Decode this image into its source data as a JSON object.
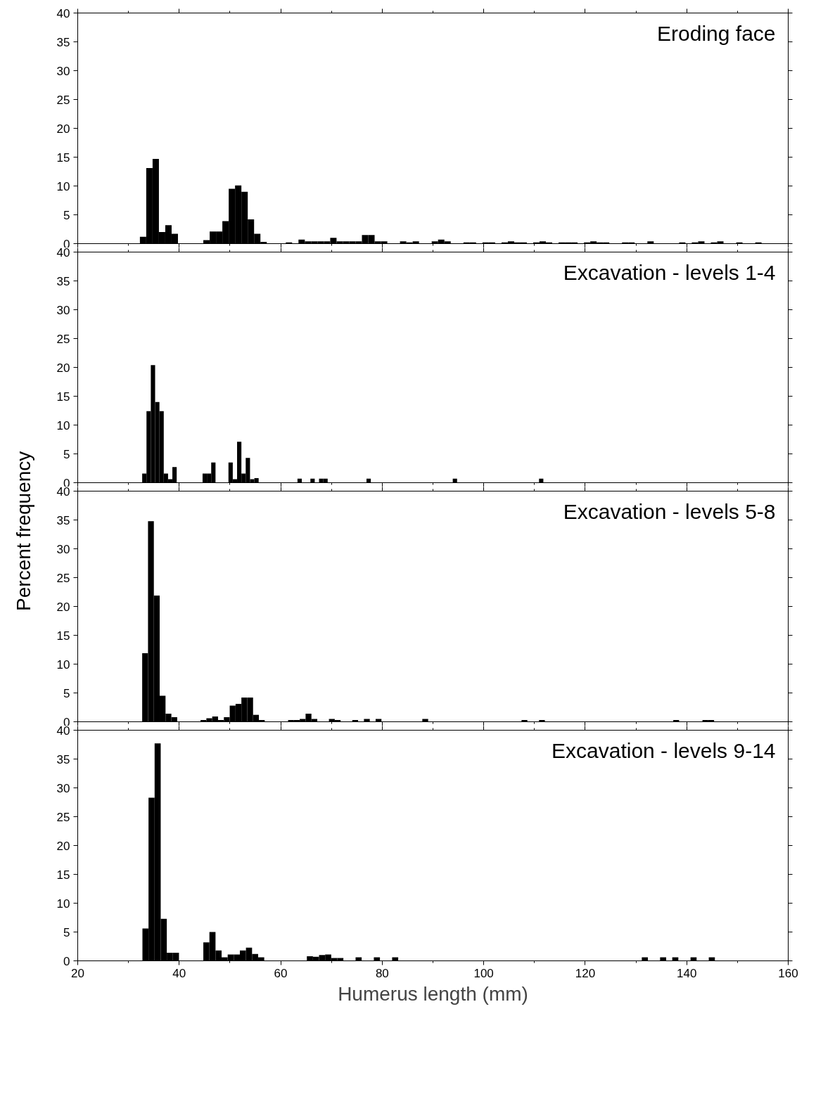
{
  "chart_data": [
    {
      "type": "histogram",
      "title": "Eroding face",
      "color": "#000000",
      "tick_labels": "y",
      "xlim": [
        20,
        160
      ],
      "xticks": [
        20,
        40,
        60,
        80,
        100,
        120,
        140,
        160
      ],
      "ylim": [
        0,
        40
      ],
      "yticks": [
        0,
        5,
        10,
        15,
        20,
        25,
        30,
        35,
        40
      ],
      "bins": [
        32.25,
        33.5,
        34.75,
        36,
        37.25,
        38.5,
        39.75,
        41,
        42.25,
        43.5,
        44.75,
        46,
        47.25,
        48.5,
        49.75,
        51,
        52.25,
        53.5,
        54.75,
        56,
        57.25,
        58.5,
        59.75,
        61,
        62.25,
        63.5,
        64.75,
        66,
        67.25,
        68.5,
        69.75,
        71,
        72.25,
        73.5,
        74.75,
        76,
        77.25,
        78.5,
        79.75,
        81,
        82.25,
        83.5,
        84.75,
        86,
        87.25,
        88.5,
        89.75,
        91,
        92.25,
        93.5,
        94.75,
        96,
        97.25,
        98.5,
        99.75,
        101,
        102.25,
        103.5,
        104.75,
        106,
        107.25,
        108.5,
        109.75,
        111,
        112.25,
        113.5,
        114.75,
        116,
        117.25,
        118.5,
        119.75,
        121,
        122.25,
        123.5,
        124.75,
        126,
        127.25,
        128.5,
        129.75,
        131,
        132.25,
        133.5,
        134.75,
        136,
        137.25,
        138.5,
        139.75,
        141,
        142.25,
        143.5,
        144.75,
        146,
        147.25,
        148.5,
        149.75,
        151,
        152.25,
        153.5,
        154.75,
        156
      ],
      "values": [
        1.2,
        13.1,
        14.7,
        2.0,
        3.2,
        1.7,
        0,
        0,
        0,
        0,
        0.6,
        2.1,
        2.1,
        3.9,
        9.5,
        10.1,
        9.0,
        4.2,
        1.7,
        0.3,
        0,
        0,
        0,
        0.2,
        0,
        0.7,
        0.4,
        0.4,
        0.4,
        0.4,
        1.0,
        0.4,
        0.4,
        0.4,
        0.4,
        1.5,
        1.5,
        0.4,
        0.4,
        0,
        0,
        0.4,
        0.2,
        0.4,
        0,
        0,
        0.4,
        0.7,
        0.4,
        0,
        0,
        0.2,
        0.2,
        0,
        0.2,
        0.2,
        0,
        0.2,
        0.4,
        0.2,
        0.2,
        0,
        0.2,
        0.4,
        0.2,
        0,
        0.2,
        0.2,
        0.2,
        0,
        0.2,
        0.4,
        0.2,
        0.2,
        0,
        0,
        0.2,
        0.2,
        0,
        0,
        0.4,
        0,
        0,
        0,
        0,
        0.2,
        0,
        0.2,
        0.4,
        0,
        0.2,
        0.4,
        0,
        0,
        0.2,
        0,
        0,
        0.2,
        0
      ]
    },
    {
      "type": "histogram",
      "title": "Excavation - levels 1-4",
      "ylabel": "Percent frequency",
      "color": "#000000",
      "tick_labels": "y",
      "xlim": [
        20,
        160
      ],
      "xticks": [
        20,
        40,
        60,
        80,
        100,
        120,
        140,
        160
      ],
      "ylim": [
        0,
        40
      ],
      "yticks": [
        0,
        5,
        10,
        15,
        20,
        25,
        30,
        35,
        40
      ],
      "bins": [
        32.7,
        33.55,
        34.4,
        35.25,
        36.1,
        36.95,
        37.8,
        38.65,
        39.5,
        40.35,
        41.2,
        42.05,
        42.9,
        43.75,
        44.6,
        45.45,
        46.3,
        47.15,
        48,
        48.85,
        49.7,
        50.55,
        51.4,
        52.25,
        53.1,
        53.95,
        54.8,
        55.65,
        56.5,
        57.35,
        58.2,
        59.05,
        59.9,
        60.75,
        61.6,
        62.45,
        63.3,
        64.15,
        65,
        65.85,
        66.7,
        67.55,
        68.4,
        69.25,
        70.1,
        70.95,
        71.8,
        72.65,
        73.5,
        74.35,
        75.2,
        76.05,
        76.9,
        77.75,
        78.6,
        79.45,
        80.3,
        81.15,
        82,
        82.85,
        83.7,
        84.55,
        85.4,
        86.25,
        87.1,
        87.95,
        88.8,
        89.65,
        90.5,
        91.35,
        92.2,
        93.05,
        93.9,
        94.75,
        95.6,
        96.45,
        97.3,
        98.15,
        99,
        99.85,
        100.7,
        101.55,
        102.4,
        103.25,
        104.1,
        104.95,
        105.8,
        106.65,
        107.5,
        108.35,
        109.2,
        110.05,
        110.9,
        111.75,
        112.6
      ],
      "values": [
        1.6,
        12.4,
        20.4,
        14.0,
        12.4,
        1.6,
        0.6,
        2.7,
        0,
        0,
        0,
        0,
        0,
        0,
        1.6,
        1.6,
        3.5,
        0,
        0,
        0,
        3.5,
        0.6,
        7.1,
        1.6,
        4.3,
        0.6,
        0.8,
        0,
        0,
        0,
        0,
        0,
        0,
        0,
        0,
        0,
        0.7,
        0,
        0,
        0.7,
        0,
        0.7,
        0.7,
        0,
        0,
        0,
        0,
        0,
        0,
        0,
        0,
        0,
        0.7,
        0,
        0,
        0,
        0,
        0,
        0,
        0,
        0,
        0,
        0,
        0,
        0,
        0,
        0,
        0,
        0,
        0,
        0,
        0,
        0.7,
        0,
        0,
        0,
        0,
        0,
        0,
        0,
        0,
        0,
        0,
        0,
        0,
        0,
        0,
        0,
        0,
        0,
        0,
        0,
        0.7,
        0
      ]
    },
    {
      "type": "histogram",
      "title": "Excavation - levels 5-8",
      "color": "#000000",
      "tick_labels": "y",
      "xlim": [
        20,
        160
      ],
      "xticks": [
        20,
        40,
        60,
        80,
        100,
        120,
        140,
        160
      ],
      "ylim": [
        0,
        40
      ],
      "yticks": [
        0,
        5,
        10,
        15,
        20,
        25,
        30,
        35,
        40
      ],
      "bins": [
        32.7,
        33.85,
        35,
        36.15,
        37.3,
        38.45,
        39.6,
        40.75,
        41.9,
        43.05,
        44.2,
        45.35,
        46.5,
        47.65,
        48.8,
        49.95,
        51.1,
        52.25,
        53.4,
        54.55,
        55.7,
        56.85,
        58,
        59.15,
        60.3,
        61.45,
        62.6,
        63.75,
        64.9,
        66.05,
        67.2,
        68.35,
        69.5,
        70.65,
        71.8,
        72.95,
        74.1,
        75.25,
        76.4,
        77.55,
        78.7,
        79.85,
        81,
        82.15,
        83.3,
        84.45,
        85.6,
        86.75,
        87.9,
        89.05,
        90.2,
        91.35,
        92.5,
        93.65,
        94.8,
        95.95,
        97.1,
        98.25,
        99.4,
        100.55,
        101.7,
        102.85,
        104,
        105.15,
        106.3,
        107.45,
        108.6,
        109.75,
        110.9,
        112.05,
        113.2,
        114.35,
        115.5,
        116.65,
        117.8,
        118.95,
        120.1,
        121.25,
        122.4,
        123.55,
        124.7,
        125.85,
        127,
        128.15,
        129.3,
        130.45,
        131.6,
        132.75,
        133.9,
        135.05,
        136.2,
        137.35,
        138.5,
        139.65,
        140.8,
        141.95,
        143.1,
        144.25,
        145.4,
        146.55,
        147.7
      ],
      "values": [
        11.9,
        34.8,
        21.9,
        4.5,
        1.4,
        0.8,
        0,
        0,
        0,
        0,
        0.3,
        0.6,
        0.9,
        0.3,
        0.8,
        2.8,
        3.1,
        4.2,
        4.2,
        1.2,
        0.3,
        0,
        0,
        0,
        0,
        0.3,
        0.3,
        0.5,
        1.4,
        0.5,
        0,
        0,
        0.5,
        0.3,
        0,
        0,
        0.3,
        0,
        0.5,
        0,
        0.5,
        0,
        0,
        0,
        0,
        0,
        0,
        0,
        0.5,
        0,
        0,
        0,
        0,
        0,
        0,
        0,
        0,
        0,
        0,
        0,
        0,
        0,
        0,
        0,
        0,
        0.3,
        0,
        0,
        0.3,
        0,
        0,
        0,
        0,
        0,
        0,
        0,
        0,
        0,
        0,
        0,
        0,
        0,
        0,
        0,
        0,
        0,
        0,
        0,
        0,
        0,
        0,
        0.3,
        0,
        0,
        0,
        0,
        0.3,
        0.3,
        0,
        0
      ]
    },
    {
      "type": "histogram",
      "title": "Excavation - levels 9-14",
      "xlabel": "Humerus length (mm)",
      "color": "#000000",
      "xlim": [
        20,
        160
      ],
      "xticks": [
        20,
        40,
        60,
        80,
        100,
        120,
        140,
        160
      ],
      "ylim": [
        0,
        40
      ],
      "yticks": [
        0,
        5,
        10,
        15,
        20,
        25,
        30,
        35,
        40
      ],
      "bins": [
        32.75,
        33.95,
        35.15,
        36.35,
        37.55,
        38.75,
        39.95,
        41.15,
        42.35,
        43.55,
        44.75,
        45.95,
        47.15,
        48.35,
        49.55,
        50.75,
        51.95,
        53.15,
        54.35,
        55.55,
        56.75,
        57.95,
        59.15,
        60.35,
        61.55,
        62.75,
        63.95,
        65.15,
        66.35,
        67.55,
        68.75,
        69.95,
        71.15,
        72.35,
        73.55,
        74.75,
        75.95,
        77.15,
        78.35,
        79.55,
        80.75,
        81.95,
        83.15,
        84.35,
        85.55,
        86.75,
        87.95,
        89.15,
        90.35,
        91.55,
        92.75,
        93.95,
        95.15,
        96.35,
        97.55,
        98.75,
        99.95,
        101.15,
        102.35,
        103.55,
        104.75,
        105.95,
        107.15,
        108.35,
        109.55,
        110.75,
        111.95,
        113.15,
        114.35,
        115.55,
        116.75,
        117.95,
        119.15,
        120.35,
        121.55,
        122.75,
        123.95,
        125.15,
        126.35,
        127.55,
        128.75,
        129.95,
        131.15,
        132.35,
        133.55,
        134.75,
        135.95,
        137.15,
        138.35,
        139.55,
        140.75,
        141.95,
        143.15,
        144.35,
        145.55,
        146.75
      ],
      "values": [
        5.6,
        28.3,
        37.7,
        7.3,
        1.4,
        1.4,
        0,
        0,
        0,
        0,
        3.2,
        5.0,
        1.8,
        0.6,
        1.1,
        1.1,
        1.8,
        2.3,
        1.2,
        0.6,
        0,
        0,
        0,
        0,
        0,
        0,
        0,
        0.8,
        0.7,
        1.0,
        1.1,
        0.5,
        0.5,
        0,
        0,
        0.6,
        0,
        0,
        0.6,
        0,
        0,
        0.6,
        0,
        0,
        0,
        0,
        0,
        0,
        0,
        0,
        0,
        0,
        0,
        0,
        0,
        0,
        0,
        0,
        0,
        0,
        0,
        0,
        0,
        0,
        0,
        0,
        0,
        0,
        0,
        0,
        0,
        0,
        0,
        0,
        0,
        0,
        0,
        0,
        0,
        0,
        0,
        0,
        0.6,
        0,
        0,
        0.6,
        0,
        0.6,
        0,
        0,
        0.6,
        0,
        0,
        0.6,
        0
      ]
    }
  ]
}
